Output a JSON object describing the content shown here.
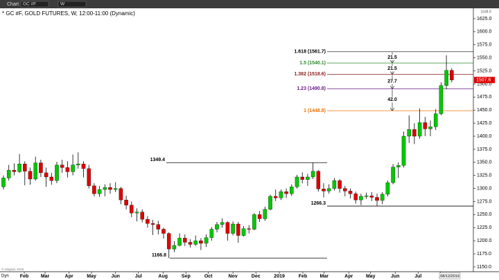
{
  "toolbar": {
    "app": "Chart",
    "symbol": "GC #F",
    "interval": "W"
  },
  "chart_data": {
    "type": "candlestick",
    "title": "* GC #F, GOLD FUTURES, W, 12:00-11:00 (Dynamic)",
    "colors": {
      "up": "#00c800",
      "down": "#e00000",
      "wick": "#000000"
    },
    "xlim": [
      -0.65,
      88.05
    ],
    "xticks": [
      {
        "value": 3.9,
        "label": "Feb"
      },
      {
        "value": 7.8,
        "label": "Mar"
      },
      {
        "value": 12.3,
        "label": "Apr"
      },
      {
        "value": 16.5,
        "label": "May"
      },
      {
        "value": 21,
        "label": "Jun"
      },
      {
        "value": 25.3,
        "label": "Jul"
      },
      {
        "value": 29.9,
        "label": "Aug"
      },
      {
        "value": 34.2,
        "label": "Sep"
      },
      {
        "value": 38.4,
        "label": "Oct"
      },
      {
        "value": 43,
        "label": "Nov"
      },
      {
        "value": 47.3,
        "label": "Dec"
      },
      {
        "value": 51.7,
        "label": "2019"
      },
      {
        "value": 56.1,
        "label": "Feb"
      },
      {
        "value": 60.1,
        "label": "Mar"
      },
      {
        "value": 64.7,
        "label": "Apr"
      },
      {
        "value": 68.8,
        "label": "May"
      },
      {
        "value": 73.4,
        "label": "Jun"
      },
      {
        "value": 77.7,
        "label": "Jul"
      },
      {
        "value": 81.9,
        "label": "A"
      }
    ],
    "ylim": [
      1140.7,
      1644.8
    ],
    "yticks": [
      {
        "value": 1150,
        "label": "1150.0"
      },
      {
        "value": 1175,
        "label": "1175.0"
      },
      {
        "value": 1200,
        "label": "1200.0"
      },
      {
        "value": 1225,
        "label": "1225.0"
      },
      {
        "value": 1250,
        "label": "1250.0"
      },
      {
        "value": 1275,
        "label": "1275.0"
      },
      {
        "value": 1300,
        "label": "1300.0"
      },
      {
        "value": 1325,
        "label": "1325.0"
      },
      {
        "value": 1350,
        "label": "1350.0"
      },
      {
        "value": 1375,
        "label": "1375.0"
      },
      {
        "value": 1400,
        "label": "1400.0"
      },
      {
        "value": 1425,
        "label": "1425.0"
      },
      {
        "value": 1450,
        "label": "1450.0"
      },
      {
        "value": 1475,
        "label": "1475.0"
      },
      {
        "value": 1500,
        "label": "1500.0"
      },
      {
        "value": 1525,
        "label": "1525.0"
      },
      {
        "value": 1550,
        "label": "1550.0"
      },
      {
        "value": 1575,
        "label": "1575.0"
      },
      {
        "value": 1600,
        "label": "1600.0"
      },
      {
        "value": 1625,
        "label": "1625.0"
      }
    ],
    "axis_top_label": "1638.9",
    "last_price": {
      "value": 1507.6,
      "label": "1507.6"
    },
    "cursor_date": "08/12/2019",
    "corner_label": "Dyn",
    "copyright": "© eSignal, 2019",
    "candles": [
      [
        1303,
        1325,
        1298,
        1320
      ],
      [
        1320,
        1345,
        1315,
        1335
      ],
      [
        1335,
        1348,
        1325,
        1332
      ],
      [
        1332,
        1366,
        1330,
        1347
      ],
      [
        1347,
        1352,
        1306,
        1333
      ],
      [
        1333,
        1340,
        1307,
        1318
      ],
      [
        1318,
        1361,
        1315,
        1349
      ],
      [
        1349,
        1355,
        1322,
        1330
      ],
      [
        1330,
        1340,
        1303,
        1322
      ],
      [
        1322,
        1330,
        1307,
        1315
      ],
      [
        1315,
        1351,
        1310,
        1345
      ],
      [
        1345,
        1355,
        1330,
        1340
      ],
      [
        1340,
        1352,
        1321,
        1332
      ],
      [
        1332,
        1365,
        1325,
        1345
      ],
      [
        1345,
        1369,
        1338,
        1347
      ],
      [
        1347,
        1352,
        1321,
        1338
      ],
      [
        1338,
        1345,
        1300,
        1305
      ],
      [
        1305,
        1310,
        1285,
        1290
      ],
      [
        1290,
        1305,
        1284,
        1298
      ],
      [
        1298,
        1308,
        1285,
        1302
      ],
      [
        1302,
        1310,
        1290,
        1298
      ],
      [
        1298,
        1312,
        1293,
        1300
      ],
      [
        1300,
        1303,
        1270,
        1278
      ],
      [
        1278,
        1286,
        1260,
        1268
      ],
      [
        1268,
        1275,
        1245,
        1253
      ],
      [
        1253,
        1262,
        1237,
        1255
      ],
      [
        1255,
        1260,
        1235,
        1241
      ],
      [
        1241,
        1247,
        1225,
        1233
      ],
      [
        1233,
        1240,
        1211,
        1231
      ],
      [
        1231,
        1238,
        1212,
        1222
      ],
      [
        1222,
        1225,
        1204,
        1214
      ],
      [
        1214,
        1216,
        1166.8,
        1184
      ],
      [
        1184,
        1199,
        1178,
        1191
      ],
      [
        1191,
        1214,
        1189,
        1205
      ],
      [
        1205,
        1212,
        1190,
        1197
      ],
      [
        1197,
        1203,
        1187,
        1193
      ],
      [
        1193,
        1210,
        1190,
        1200
      ],
      [
        1200,
        1205,
        1182,
        1195
      ],
      [
        1195,
        1212,
        1188,
        1206
      ],
      [
        1206,
        1226,
        1200,
        1222
      ],
      [
        1222,
        1236,
        1216,
        1231
      ],
      [
        1231,
        1243,
        1225,
        1235
      ],
      [
        1235,
        1237,
        1200,
        1214
      ],
      [
        1214,
        1237,
        1210,
        1232
      ],
      [
        1232,
        1236,
        1196,
        1210
      ],
      [
        1210,
        1228,
        1208,
        1223
      ],
      [
        1223,
        1230,
        1214,
        1222
      ],
      [
        1222,
        1253,
        1220,
        1250
      ],
      [
        1250,
        1257,
        1236,
        1242
      ],
      [
        1242,
        1265,
        1238,
        1260
      ],
      [
        1260,
        1288,
        1258,
        1285
      ],
      [
        1285,
        1298,
        1276,
        1282
      ],
      [
        1282,
        1298,
        1278,
        1294
      ],
      [
        1294,
        1300,
        1282,
        1290
      ],
      [
        1290,
        1308,
        1286,
        1303
      ],
      [
        1303,
        1326,
        1300,
        1322
      ],
      [
        1322,
        1331,
        1310,
        1317
      ],
      [
        1317,
        1328,
        1305,
        1322
      ],
      [
        1322,
        1349.4,
        1318,
        1333
      ],
      [
        1333,
        1335,
        1294,
        1299
      ],
      [
        1299,
        1310,
        1283,
        1295
      ],
      [
        1295,
        1308,
        1290,
        1300
      ],
      [
        1300,
        1320,
        1296,
        1315
      ],
      [
        1315,
        1318,
        1292,
        1300
      ],
      [
        1300,
        1305,
        1285,
        1295
      ],
      [
        1295,
        1300,
        1281,
        1290
      ],
      [
        1290,
        1294,
        1271,
        1278
      ],
      [
        1278,
        1290,
        1268,
        1285
      ],
      [
        1285,
        1292,
        1280,
        1286
      ],
      [
        1286,
        1293,
        1276,
        1283
      ],
      [
        1283,
        1290,
        1266.3,
        1277
      ],
      [
        1277,
        1293,
        1270,
        1289
      ],
      [
        1289,
        1315,
        1285,
        1311
      ],
      [
        1311,
        1347,
        1308,
        1341
      ],
      [
        1341,
        1350,
        1320,
        1344
      ],
      [
        1344,
        1409,
        1340,
        1400
      ],
      [
        1400,
        1440,
        1387,
        1413
      ],
      [
        1413,
        1425,
        1385,
        1400
      ],
      [
        1400,
        1453,
        1395,
        1426
      ],
      [
        1426,
        1437,
        1400,
        1414
      ],
      [
        1414,
        1430,
        1400,
        1418
      ],
      [
        1418,
        1452,
        1412,
        1443
      ],
      [
        1443,
        1503,
        1440,
        1497
      ],
      [
        1497,
        1555,
        1490,
        1526
      ],
      [
        1526,
        1530,
        1503,
        1507.6
      ]
    ],
    "levels": [
      1349.4,
      1166.8,
      1266.3
    ],
    "fib_levels": [
      {
        "label": "1.618 (1561.7)",
        "value": 1561.7,
        "color": "#000000"
      },
      {
        "label": "1.5 (1540.1)",
        "value": 1540.1,
        "color": "#2e8b2e"
      },
      {
        "label": "1.382 (1518.6)",
        "value": 1518.6,
        "color": "#8b1a1a"
      },
      {
        "label": "1.23 (1490.8)",
        "value": 1490.8,
        "color": "#6a1a8a"
      },
      {
        "label": "1 (1448.8)",
        "value": 1448.8,
        "color": "#f07000"
      }
    ],
    "measures": [
      21.5,
      21.5,
      27.7,
      {
        "value": 42,
        "label": "42.0"
      }
    ]
  }
}
